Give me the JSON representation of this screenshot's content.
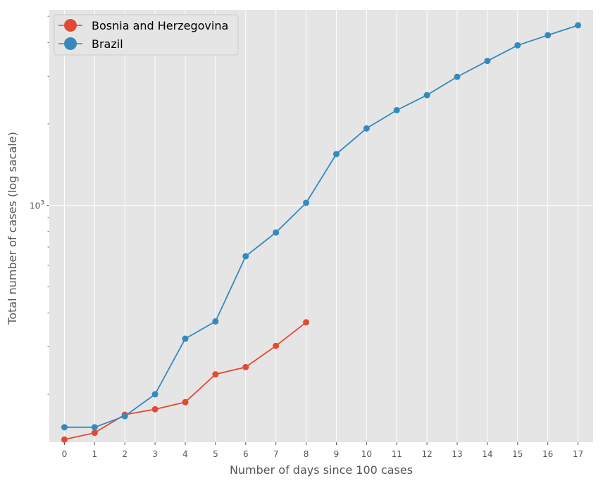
{
  "chart_data": {
    "type": "line",
    "xlabel": "Number of days since 100 cases",
    "ylabel": "Total number of cases  (log sacale)",
    "yscale": "log",
    "xlim": [
      -0.5,
      17.5
    ],
    "ylim": [
      133,
      5280
    ],
    "x_ticks": [
      0,
      1,
      2,
      3,
      4,
      5,
      6,
      7,
      8,
      9,
      10,
      11,
      12,
      13,
      14,
      15,
      16,
      17
    ],
    "y_major_ticks": [
      {
        "value": 1000,
        "base": "10",
        "exp": "3"
      }
    ],
    "y_minor_ticks": [
      200,
      300,
      400,
      500,
      600,
      700,
      800,
      900,
      2000,
      3000,
      4000,
      5000
    ],
    "grid": true,
    "legend_position": "top-left",
    "series": [
      {
        "name": "Bosnia and Herzegovina",
        "color": "#e24a33",
        "x": [
          0,
          1,
          2,
          3,
          4,
          5,
          6,
          7,
          8
        ],
        "values": [
          136,
          144,
          168,
          176,
          187,
          237,
          252,
          302,
          369
        ]
      },
      {
        "name": "Brazil",
        "color": "#348abd",
        "x": [
          0,
          1,
          2,
          3,
          4,
          5,
          6,
          7,
          8,
          9,
          10,
          11,
          12,
          13,
          14,
          15,
          16,
          17
        ],
        "values": [
          151,
          151,
          166,
          200,
          321,
          372,
          648,
          793,
          1021,
          1546,
          1924,
          2247,
          2554,
          2985,
          3417,
          3904,
          4256,
          4630
        ]
      }
    ]
  }
}
